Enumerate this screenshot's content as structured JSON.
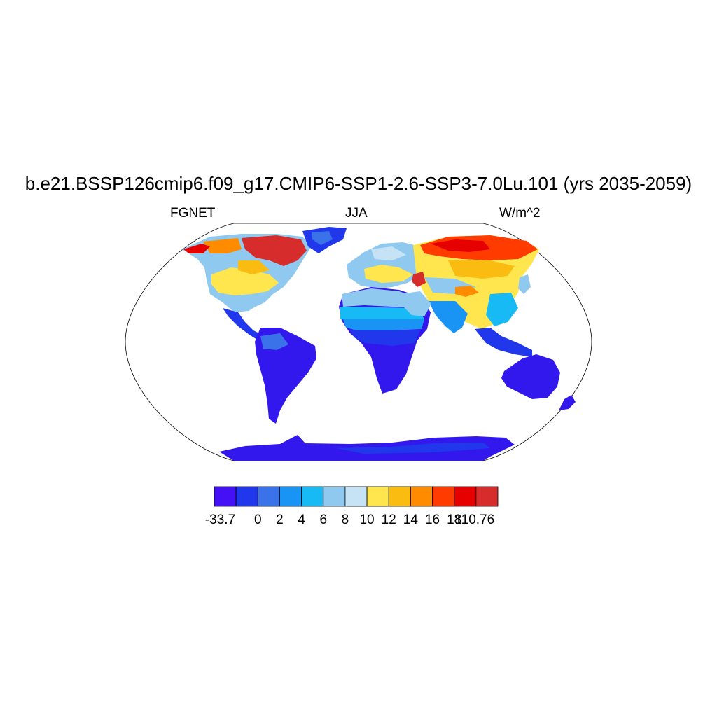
{
  "title": "b.e21.BSSP126cmip6.f09_g17.CMIP6-SSP1-2.6-SSP3-7.0Lu.101 (yrs 2035-2059)",
  "left_string": "FGNET",
  "center_string": "JJA",
  "right_string": "W/m^2",
  "colorbar": {
    "colors": [
      "#4410f5",
      "#2137ec",
      "#3a72ea",
      "#1994f4",
      "#18baf5",
      "#90c9ef",
      "#c6e3f5",
      "#ffe64f",
      "#fbbc12",
      "#ff8c00",
      "#ff3b00",
      "#e60000",
      "#d72c2c"
    ],
    "labels": [
      "-33.7",
      "0",
      "2",
      "4",
      "6",
      "8",
      "10",
      "12",
      "14",
      "16",
      "18",
      "110.76"
    ]
  },
  "map": {
    "projection": "robinson",
    "ocean_color": "#ffffff",
    "coastline_color": "#000000"
  }
}
